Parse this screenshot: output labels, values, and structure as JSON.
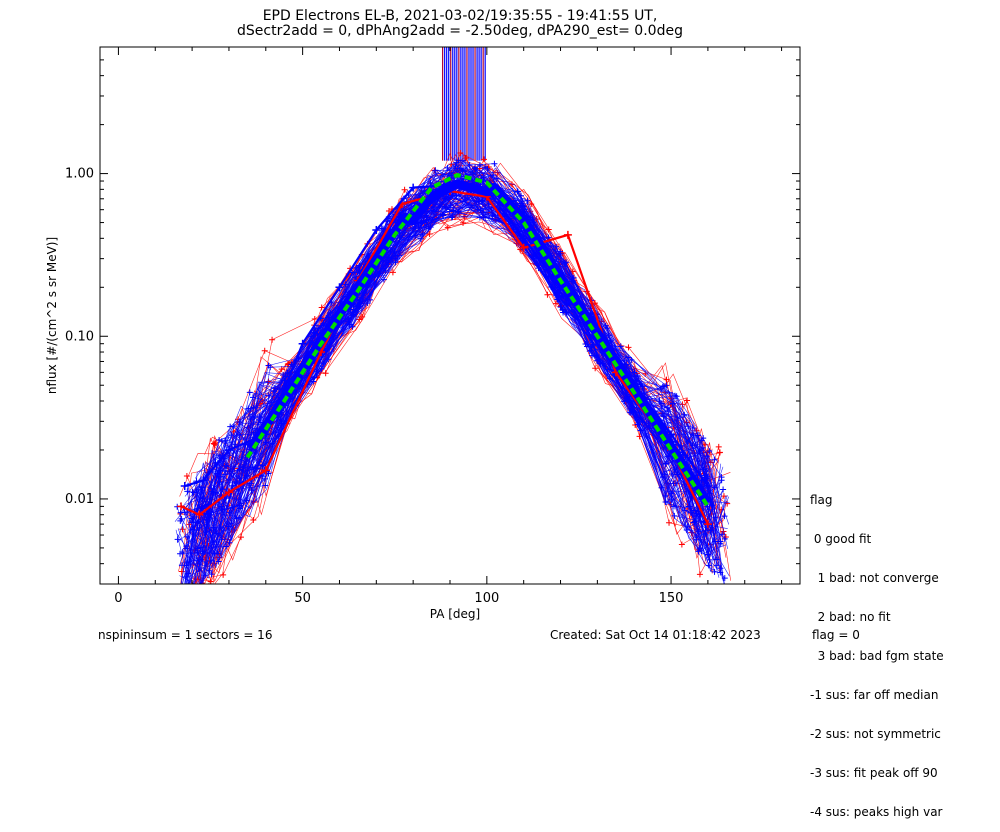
{
  "chart_data": {
    "type": "line",
    "title": "EPD Electrons EL-B, 2021-03-02/19:35:55 - 19:41:55 UT,",
    "subtitle": "dSectr2add = 0, dPhAng2add = -2.50deg, dPA290_est=   0.0deg",
    "xlabel": "PA [deg]",
    "ylabel": "nflux [#/(cm^2 s sr MeV)]",
    "xlim": [
      -5,
      185
    ],
    "ylim": [
      0.003,
      6
    ],
    "yscale": "log",
    "xticks": [
      "0",
      "50",
      "100",
      "150"
    ],
    "yticks": [
      "0.01",
      "0.10",
      "1.00"
    ],
    "series": [
      {
        "color": "#ff0000",
        "x": [
          17,
          22,
          30,
          40,
          55,
          65,
          77,
          90,
          100,
          110,
          122,
          135,
          150,
          160
        ],
        "y": [
          0.009,
          0.008,
          0.011,
          0.015,
          0.08,
          0.22,
          0.65,
          0.78,
          0.72,
          0.35,
          0.42,
          0.06,
          0.02,
          0.007
        ]
      },
      {
        "color": "#0000ff",
        "x": [
          18,
          23,
          30,
          40,
          50,
          60,
          70,
          80,
          90,
          100,
          110,
          120,
          130,
          140,
          150,
          160
        ],
        "y": [
          0.012,
          0.013,
          0.02,
          0.025,
          0.09,
          0.2,
          0.45,
          0.82,
          0.85,
          0.8,
          0.4,
          0.2,
          0.1,
          0.05,
          0.025,
          0.012
        ]
      },
      {
        "color": "#00dd00",
        "x": [
          35,
          45,
          55,
          65,
          75,
          85,
          92,
          100,
          110,
          120,
          130,
          140,
          150,
          160
        ],
        "y": [
          0.018,
          0.04,
          0.09,
          0.19,
          0.42,
          0.82,
          0.98,
          0.88,
          0.5,
          0.22,
          0.1,
          0.045,
          0.02,
          0.009
        ]
      }
    ],
    "legend": {
      "position": "right",
      "title": "flag",
      "entries": [
        " 0 good fit",
        "  1 bad: not converge",
        "  2 bad: no fit",
        "  3 bad: bad fgm state",
        "-1 sus: far off median",
        "-2 sus: not symmetric",
        "-3 sus: fit peak off 90",
        "-4 sus: peaks high var"
      ]
    }
  },
  "footer": {
    "left": "nspininsum =  1  sectors = 16",
    "created": "Created: Sat Oct 14 01:18:42 2023",
    "flag": "flag = 0"
  }
}
